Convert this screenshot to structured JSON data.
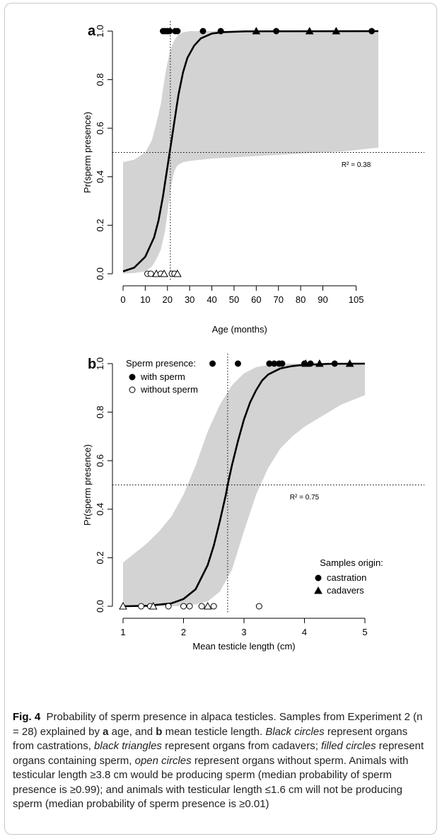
{
  "chart_data": [
    {
      "panel": "a",
      "type": "scatter",
      "xlabel": "Age (months)",
      "ylabel": "Pr(sperm presence)",
      "xlim": [
        0,
        115
      ],
      "ylim": [
        0,
        1
      ],
      "xticks": [
        0,
        10,
        20,
        30,
        40,
        50,
        60,
        70,
        80,
        90,
        105
      ],
      "yticks": [
        "0.0",
        "0.2",
        "0.4",
        "0.6",
        "0.8",
        "1.0"
      ],
      "r2_label": "R² = 0.38",
      "r2_x": 105,
      "r2_y": 0.44,
      "threshold_x": 21.3,
      "hline_y": 0.5,
      "curve": {
        "x": [
          0,
          5,
          10,
          14,
          16,
          18,
          19,
          20,
          21,
          22,
          23,
          24,
          25,
          27,
          29,
          32,
          35,
          40,
          45,
          55,
          115
        ],
        "y": [
          0.01,
          0.025,
          0.07,
          0.15,
          0.22,
          0.32,
          0.38,
          0.44,
          0.5,
          0.56,
          0.62,
          0.68,
          0.74,
          0.83,
          0.89,
          0.94,
          0.97,
          0.99,
          0.996,
          0.999,
          1.0
        ]
      },
      "band": {
        "x": [
          0,
          5,
          10,
          13,
          15,
          17,
          18,
          19,
          20,
          21,
          22,
          23,
          24,
          25,
          27,
          30,
          35,
          40,
          50,
          60,
          80,
          100,
          115
        ],
        "lower": [
          0.001,
          0.003,
          0.01,
          0.03,
          0.06,
          0.1,
          0.14,
          0.18,
          0.25,
          0.32,
          0.38,
          0.42,
          0.44,
          0.45,
          0.46,
          0.465,
          0.47,
          0.475,
          0.48,
          0.485,
          0.495,
          0.505,
          0.52
        ],
        "upper": [
          0.46,
          0.47,
          0.5,
          0.55,
          0.62,
          0.7,
          0.76,
          0.82,
          0.87,
          0.91,
          0.94,
          0.96,
          0.975,
          0.985,
          0.995,
          1.0,
          1.0,
          1.0,
          1.0,
          1.0,
          1.0,
          1.0,
          1.0
        ]
      },
      "points": [
        {
          "x": 18,
          "y": 1,
          "shape": "circle",
          "fill": true
        },
        {
          "x": 19,
          "y": 1,
          "shape": "circle",
          "fill": true
        },
        {
          "x": 20,
          "y": 1,
          "shape": "circle",
          "fill": true
        },
        {
          "x": 21,
          "y": 1,
          "shape": "circle",
          "fill": true
        },
        {
          "x": 23.5,
          "y": 1,
          "shape": "circle",
          "fill": true
        },
        {
          "x": 24.5,
          "y": 1,
          "shape": "circle",
          "fill": true
        },
        {
          "x": 36,
          "y": 1,
          "shape": "circle",
          "fill": true
        },
        {
          "x": 44,
          "y": 1,
          "shape": "circle",
          "fill": true
        },
        {
          "x": 60,
          "y": 1,
          "shape": "triangle",
          "fill": true
        },
        {
          "x": 69,
          "y": 1,
          "shape": "circle",
          "fill": true
        },
        {
          "x": 84,
          "y": 1,
          "shape": "triangle",
          "fill": true
        },
        {
          "x": 96,
          "y": 1,
          "shape": "triangle",
          "fill": true
        },
        {
          "x": 112,
          "y": 1,
          "shape": "circle",
          "fill": true
        },
        {
          "x": 11,
          "y": 0,
          "shape": "circle",
          "fill": false
        },
        {
          "x": 12.5,
          "y": 0,
          "shape": "circle",
          "fill": false
        },
        {
          "x": 15,
          "y": 0,
          "shape": "triangle",
          "fill": false
        },
        {
          "x": 17,
          "y": 0,
          "shape": "circle",
          "fill": false
        },
        {
          "x": 18.5,
          "y": 0,
          "shape": "triangle",
          "fill": false
        },
        {
          "x": 22,
          "y": 0,
          "shape": "circle",
          "fill": false
        },
        {
          "x": 23.2,
          "y": 0,
          "shape": "circle",
          "fill": false
        },
        {
          "x": 24.5,
          "y": 0,
          "shape": "triangle",
          "fill": false
        }
      ]
    },
    {
      "panel": "b",
      "type": "scatter",
      "xlabel": "Mean testicle length (cm)",
      "ylabel": "Pr(sperm presence)",
      "xlim": [
        1,
        5
      ],
      "ylim": [
        0,
        1
      ],
      "xticks": [
        1,
        2,
        3,
        4,
        5
      ],
      "yticks": [
        "0.0",
        "0.2",
        "0.4",
        "0.6",
        "0.8",
        "1.0"
      ],
      "r2_label": "R² = 0.75",
      "r2_x": 4.0,
      "r2_y": 0.44,
      "threshold_x": 2.73,
      "hline_y": 0.5,
      "curve": {
        "x": [
          1,
          1.4,
          1.8,
          2.0,
          2.2,
          2.4,
          2.5,
          2.6,
          2.7,
          2.73,
          2.8,
          2.9,
          3.0,
          3.1,
          3.2,
          3.3,
          3.4,
          3.6,
          3.8,
          4.0,
          4.4,
          5
        ],
        "y": [
          0.0,
          0.002,
          0.012,
          0.03,
          0.07,
          0.17,
          0.25,
          0.35,
          0.46,
          0.5,
          0.58,
          0.68,
          0.77,
          0.84,
          0.89,
          0.93,
          0.955,
          0.98,
          0.99,
          0.995,
          0.999,
          1.0
        ]
      },
      "band": {
        "x": [
          1,
          1.2,
          1.4,
          1.6,
          1.8,
          2.0,
          2.2,
          2.4,
          2.6,
          2.8,
          3.0,
          3.2,
          3.4,
          3.6,
          3.8,
          4.0,
          4.2,
          4.4,
          4.6,
          4.8,
          5
        ],
        "lower": [
          0.0,
          0.0,
          0.0,
          0.0,
          0.0,
          0.002,
          0.008,
          0.02,
          0.06,
          0.15,
          0.31,
          0.46,
          0.57,
          0.65,
          0.7,
          0.74,
          0.77,
          0.8,
          0.83,
          0.85,
          0.87
        ],
        "upper": [
          0.18,
          0.22,
          0.26,
          0.31,
          0.37,
          0.46,
          0.58,
          0.72,
          0.83,
          0.91,
          0.96,
          0.985,
          0.995,
          1.0,
          1.0,
          1.0,
          1.0,
          1.0,
          1.0,
          1.0,
          1.0
        ]
      },
      "points": [
        {
          "x": 2.48,
          "y": 1,
          "shape": "circle",
          "fill": true
        },
        {
          "x": 2.9,
          "y": 1,
          "shape": "circle",
          "fill": true
        },
        {
          "x": 3.42,
          "y": 1,
          "shape": "circle",
          "fill": true
        },
        {
          "x": 3.5,
          "y": 1,
          "shape": "circle",
          "fill": true
        },
        {
          "x": 3.58,
          "y": 1,
          "shape": "circle",
          "fill": true
        },
        {
          "x": 3.63,
          "y": 1,
          "shape": "circle",
          "fill": true
        },
        {
          "x": 4.0,
          "y": 1,
          "shape": "circle",
          "fill": true
        },
        {
          "x": 4.02,
          "y": 1,
          "shape": "triangle",
          "fill": true
        },
        {
          "x": 4.1,
          "y": 1,
          "shape": "circle",
          "fill": true
        },
        {
          "x": 4.25,
          "y": 1,
          "shape": "triangle",
          "fill": true
        },
        {
          "x": 4.5,
          "y": 1,
          "shape": "circle",
          "fill": true
        },
        {
          "x": 4.75,
          "y": 1,
          "shape": "triangle",
          "fill": true
        },
        {
          "x": 1.0,
          "y": 0,
          "shape": "triangle",
          "fill": false
        },
        {
          "x": 1.3,
          "y": 0,
          "shape": "circle",
          "fill": false
        },
        {
          "x": 1.45,
          "y": 0,
          "shape": "circle",
          "fill": false
        },
        {
          "x": 1.5,
          "y": 0,
          "shape": "triangle",
          "fill": false
        },
        {
          "x": 1.75,
          "y": 0,
          "shape": "circle",
          "fill": false
        },
        {
          "x": 2.0,
          "y": 0,
          "shape": "circle",
          "fill": false
        },
        {
          "x": 2.1,
          "y": 0,
          "shape": "circle",
          "fill": false
        },
        {
          "x": 2.3,
          "y": 0,
          "shape": "circle",
          "fill": false
        },
        {
          "x": 2.4,
          "y": 0,
          "shape": "triangle",
          "fill": false
        },
        {
          "x": 2.5,
          "y": 0,
          "shape": "circle",
          "fill": false
        },
        {
          "x": 3.25,
          "y": 0,
          "shape": "circle",
          "fill": false
        }
      ],
      "legend_presence": {
        "title": "Sperm presence:",
        "placement": "top-left",
        "items": [
          {
            "label": "with sperm",
            "shape": "circle",
            "fill": true
          },
          {
            "label": "without sperm",
            "shape": "circle",
            "fill": false
          }
        ]
      },
      "legend_origin": {
        "title": "Samples origin:",
        "placement": "bottom-right",
        "items": [
          {
            "label": "castration",
            "shape": "circle",
            "fill": true
          },
          {
            "label": "cadavers",
            "shape": "triangle",
            "fill": true
          }
        ]
      }
    }
  ],
  "panels": {
    "a": {
      "letter": "a"
    },
    "b": {
      "letter": "b"
    }
  },
  "caption": {
    "fig_label": "Fig. 4",
    "title": "Probability of sperm presence in alpaca testicles. Samples from Experiment 2 (n = 28) explained by ",
    "a_letter": "a",
    "a_text": " age, and ",
    "b_letter": "b",
    "b_text": " mean testicle length. ",
    "t_black_circles": "Black circles",
    "t1": " represent organs from castrations, ",
    "t_black_triangles": "black triangles",
    "t2": " represent organs from cadavers; ",
    "t_filled_circles": "filled circles",
    "t3": " represent organs containing sperm, ",
    "t_open_circles": "open circles",
    "t4": " represent organs without sperm. Animals with testicular length ≥3.8 cm would be producing sperm (median probability of sperm presence is ≥0.99); and animals with testicular length ≤1.6 cm will not be producing sperm (median probability of sperm presence is ≥0.01)"
  }
}
